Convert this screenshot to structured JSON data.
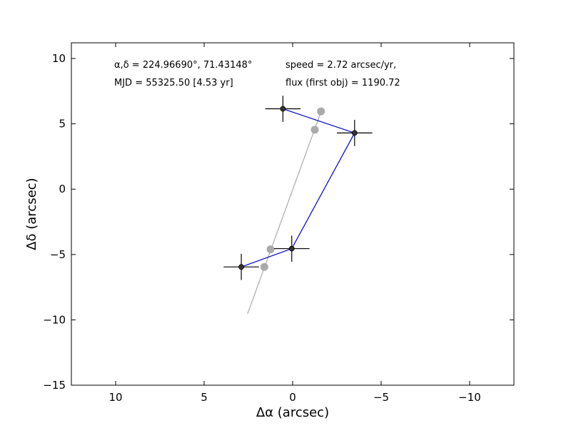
{
  "chart_data": {
    "type": "scatter",
    "xlabel": "Δα (arcsec)",
    "ylabel": "Δδ (arcsec)",
    "xlim": [
      12.5,
      -12.5
    ],
    "ylim": [
      -15,
      11.2
    ],
    "x_ticks": [
      10,
      5,
      0,
      -5,
      -10
    ],
    "x_tick_labels": [
      "10",
      "5",
      "0",
      "−5",
      "−10"
    ],
    "y_ticks": [
      10,
      5,
      0,
      -5,
      -10,
      -15
    ],
    "y_tick_labels": [
      "10",
      "5",
      "0",
      "−5",
      "−10",
      "−15"
    ],
    "grid": false,
    "annotations": {
      "coords": "α,δ = 224.96690°, 71.43148°",
      "mjd": "MJD = 55325.50 [4.53 yr]",
      "speed": "speed = 2.72 arcsec/yr,",
      "flux": "flux (first obj) = 1190.72"
    },
    "measured": {
      "color": "#0000cc",
      "marker_color": "#333333",
      "points": [
        {
          "x": 2.9,
          "y": -5.95,
          "xerr": 1.0,
          "yerr": 1.0
        },
        {
          "x": 0.05,
          "y": -4.55,
          "xerr": 1.0,
          "yerr": 1.0
        },
        {
          "x": -3.5,
          "y": 4.3,
          "xerr": 1.0,
          "yerr": 1.0
        },
        {
          "x": 0.55,
          "y": 6.15,
          "xerr": 1.0,
          "yerr": 1.0
        }
      ]
    },
    "model": {
      "color": "#aaaaaa",
      "line": [
        {
          "x": 2.55,
          "y": -9.55
        },
        {
          "x": -1.65,
          "y": 6.1
        }
      ],
      "points": [
        {
          "x": 1.6,
          "y": -5.95
        },
        {
          "x": 1.25,
          "y": -4.6
        },
        {
          "x": -1.25,
          "y": 4.55
        },
        {
          "x": -1.6,
          "y": 5.95
        }
      ]
    }
  }
}
